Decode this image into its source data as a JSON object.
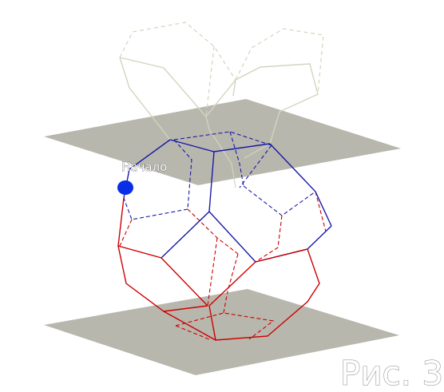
{
  "figure": {
    "caption": "Рис. 3",
    "start_label": "Начало"
  },
  "colors": {
    "background": "#ffffff",
    "plane": "#b8b7ad",
    "upper_net": "#d8d8c4",
    "blue_path": "#1a1aa8",
    "red_path": "#cc0000",
    "start_point": "#0a2ee6"
  }
}
